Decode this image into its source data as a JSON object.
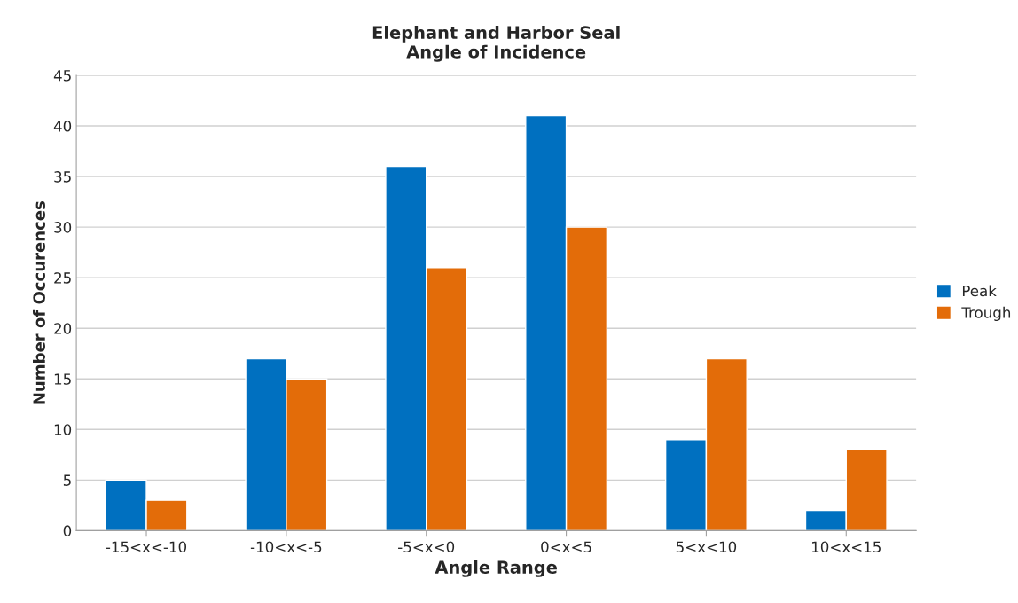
{
  "chart_data": {
    "type": "bar",
    "title": "Elephant and Harbor Seal\nAngle of Incidence",
    "xlabel": "Angle Range",
    "ylabel": "Number of Occurences",
    "categories": [
      "-15<x<-10",
      "-10<x<-5",
      "-5<x<0",
      "0<x<5",
      "5<x<10",
      "10<x<15"
    ],
    "series": [
      {
        "name": "Peak",
        "color": "#0070c0",
        "values": [
          5,
          17,
          36,
          41,
          9,
          2
        ]
      },
      {
        "name": "Trough",
        "color": "#e36c09",
        "values": [
          3,
          15,
          26,
          30,
          17,
          8
        ]
      }
    ],
    "ylim": [
      0,
      45
    ],
    "yticks": [
      0,
      5,
      10,
      15,
      20,
      25,
      30,
      35,
      40,
      45
    ],
    "grid": "y",
    "legend": "right"
  }
}
